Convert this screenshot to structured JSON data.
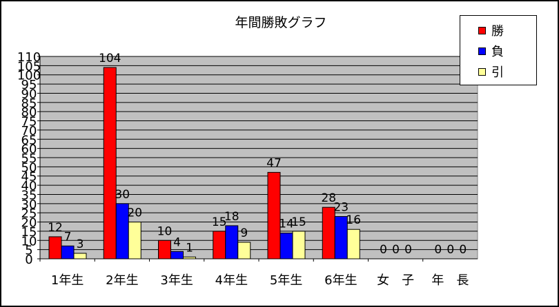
{
  "chart_data": {
    "type": "bar",
    "title": "年間勝敗グラフ",
    "xlabel": "",
    "ylabel": "",
    "categories": [
      "1年生",
      "2年生",
      "3年生",
      "4年生",
      "5年生",
      "6年生",
      "女　子",
      "年　長"
    ],
    "series": [
      {
        "name": "勝",
        "color": "#ff0000",
        "values": [
          12,
          104,
          10,
          15,
          47,
          28,
          0,
          0
        ]
      },
      {
        "name": "負",
        "color": "#0000ff",
        "values": [
          7,
          30,
          4,
          18,
          14,
          23,
          0,
          0
        ]
      },
      {
        "name": "引",
        "color": "#ffff99",
        "values": [
          3,
          20,
          1,
          9,
          15,
          16,
          0,
          0
        ]
      }
    ],
    "yticks": [
      "0",
      "5",
      "10",
      "15",
      "20",
      "25",
      "30",
      "35",
      "40",
      "45",
      "50",
      "55",
      "60",
      "65",
      "70",
      "75",
      "80",
      "85",
      "90",
      "95",
      "100",
      "105",
      "110"
    ],
    "ylim": [
      0,
      110
    ],
    "grid": true,
    "legend_position": "top-right",
    "plot_background": "#c0c0c0"
  }
}
